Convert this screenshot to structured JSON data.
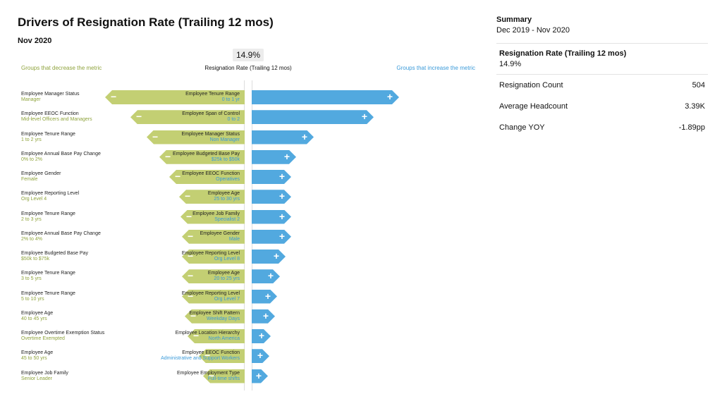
{
  "page": {
    "title": "Drivers of Resignation Rate (Trailing 12 mos)",
    "subtitle": "Nov 2020",
    "center_value": "14.9%",
    "center_label": "Resignation Rate (Trailing 12 mos)",
    "decrease_label": "Groups that decrease the metric",
    "increase_label": "Groups that increase the metric"
  },
  "summary": {
    "title": "Summary",
    "date_range": "Dec 2019 - Nov 2020",
    "metric_name": "Resignation Rate (Trailing 12 mos)",
    "metric_value": "14.9%",
    "stats": [
      {
        "label": "Resignation Count",
        "value": "504"
      },
      {
        "label": "Average Headcount",
        "value": "3.39K"
      },
      {
        "label": "Change YOY",
        "value": "-1.89pp"
      }
    ]
  },
  "colors": {
    "decrease": "#c3cf73",
    "increase": "#52a9df",
    "decrease_text": "#8fa33d",
    "increase_text": "#3a9ad9"
  },
  "chart_data": {
    "type": "bar",
    "decrease": [
      {
        "category": "Employee Manager Status",
        "group": "Manager",
        "value": 1.0
      },
      {
        "category": "Employee EEOC Function",
        "group": "Mid-level Officers and Managers",
        "value": 0.82
      },
      {
        "category": "Employee Tenure Range",
        "group": "1 to 2 yrs",
        "value": 0.7
      },
      {
        "category": "Employee Annual Base Pay Change",
        "group": "0% to 2%",
        "value": 0.61
      },
      {
        "category": "Employee Gender",
        "group": "Female",
        "value": 0.54
      },
      {
        "category": "Employee Reporting Level",
        "group": "Org Level 4",
        "value": 0.47
      },
      {
        "category": "Employee Tenure Range",
        "group": "2 to 3 yrs",
        "value": 0.46
      },
      {
        "category": "Employee Annual Base Pay Change",
        "group": "2% to 4%",
        "value": 0.45
      },
      {
        "category": "Employee Budgeted Base Pay",
        "group": "$50k to $75k",
        "value": 0.45
      },
      {
        "category": "Employee Tenure Range",
        "group": "3 to 5 yrs",
        "value": 0.45
      },
      {
        "category": "Employee Tenure Range",
        "group": "5 to 10 yrs",
        "value": 0.45
      },
      {
        "category": "Employee Age",
        "group": "40 to 45 yrs",
        "value": 0.43
      },
      {
        "category": "Employee Overtime Exemption Status",
        "group": "Overtime Exempted",
        "value": 0.41
      },
      {
        "category": "Employee Age",
        "group": "45 to 50 yrs",
        "value": 0.33
      },
      {
        "category": "Employee Job Family",
        "group": "Senior Leader",
        "value": 0.3
      }
    ],
    "increase": [
      {
        "category": "Employee Tenure Range",
        "group": "0 to 1 yr",
        "value": 1.0
      },
      {
        "category": "Employee Span of Control",
        "group": "0 to 2",
        "value": 0.83
      },
      {
        "category": "Employee Manager Status",
        "group": "Non Manager",
        "value": 0.42
      },
      {
        "category": "Employee Budgeted Base Pay",
        "group": "$25k to $50k",
        "value": 0.3
      },
      {
        "category": "Employee EEOC Function",
        "group": "Operatives",
        "value": 0.27
      },
      {
        "category": "Employee Age",
        "group": "25 to 30 yrs",
        "value": 0.27
      },
      {
        "category": "Employee Job Family",
        "group": "Specialist 2",
        "value": 0.27
      },
      {
        "category": "Employee Gender",
        "group": "Male",
        "value": 0.27
      },
      {
        "category": "Employee Reporting Level",
        "group": "Org Level 8",
        "value": 0.23
      },
      {
        "category": "Employee Age",
        "group": "20 to 25 yrs",
        "value": 0.19
      },
      {
        "category": "Employee Reporting Level",
        "group": "Org Level 7",
        "value": 0.17
      },
      {
        "category": "Employee Shift Pattern",
        "group": "Weekday Days",
        "value": 0.16
      },
      {
        "category": "Employee Location Hierarchy",
        "group": "North America",
        "value": 0.13
      },
      {
        "category": "Employee EEOC Function",
        "group": "Administrative and Support Workers",
        "value": 0.12
      },
      {
        "category": "Employee Employment Type",
        "group": "Full-time shifts",
        "value": 0.11
      }
    ]
  }
}
